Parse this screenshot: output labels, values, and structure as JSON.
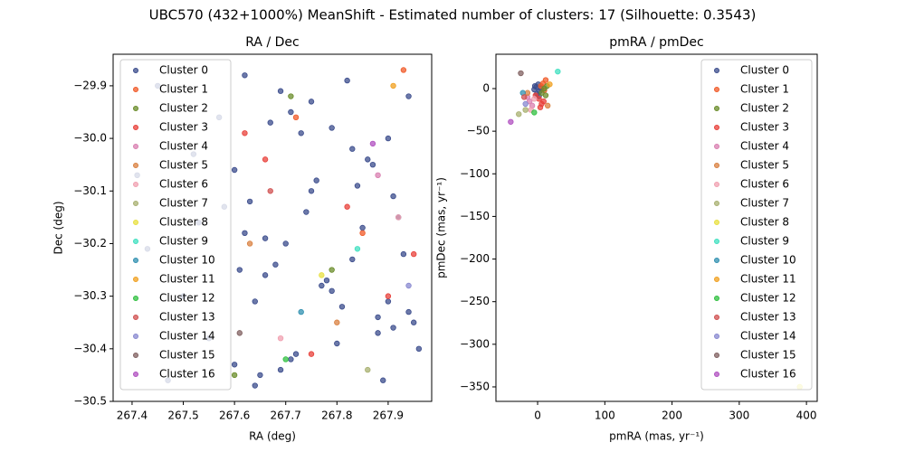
{
  "figure_title": "UBC570 (432+1000%) MeanShift - Estimated number of clusters: 17 (Silhouette: 0.3543)",
  "chart_data": [
    {
      "type": "scatter",
      "title": "RA / Dec",
      "xlabel": "RA (deg)",
      "ylabel": "Dec (deg)",
      "legend": "upper left",
      "xlim": [
        267.363,
        267.985
      ],
      "ylim": [
        -30.5,
        -29.84
      ],
      "xticks": [
        267.4,
        267.5,
        267.6,
        267.7,
        267.8,
        267.9
      ],
      "yticks": [
        {
          "value": -29.9,
          "label": "−29.9"
        },
        {
          "value": -30.0,
          "label": "−30.0"
        },
        {
          "value": -30.1,
          "label": "−30.1"
        },
        {
          "value": -30.2,
          "label": "−30.2"
        },
        {
          "value": -30.3,
          "label": "−30.3"
        },
        {
          "value": -30.4,
          "label": "−30.4"
        },
        {
          "value": -30.5,
          "label": "−30.5"
        }
      ],
      "series": [
        {
          "name": "Cluster 0",
          "color": "#3b4c8c",
          "x": [
            267.62,
            267.71,
            267.83,
            267.91,
            267.66,
            267.78,
            267.95,
            267.6,
            267.69,
            267.87,
            267.74,
            267.93,
            267.64,
            267.8,
            267.89,
            267.67,
            267.76,
            267.85,
            267.61,
            267.94,
            267.72,
            267.82,
            267.9,
            267.63,
            267.7,
            267.79,
            267.88,
            267.65,
            267.75,
            267.86,
            267.92,
            267.68,
            267.81,
            267.96,
            267.73,
            267.84,
            267.62,
            267.77,
            267.91,
            267.69,
            267.45,
            267.52,
            267.58,
            267.43,
            267.5,
            267.55,
            267.47,
            267.57,
            267.41,
            267.53,
            267.66,
            267.88,
            267.71,
            267.94,
            267.6,
            267.83,
            267.75,
            267.9,
            267.64,
            267.79
          ],
          "y": [
            -29.88,
            -29.95,
            -30.02,
            -30.11,
            -30.19,
            -30.27,
            -30.35,
            -30.43,
            -29.91,
            -30.05,
            -30.14,
            -30.22,
            -30.31,
            -30.39,
            -30.46,
            -29.97,
            -30.08,
            -30.17,
            -30.25,
            -30.33,
            -30.41,
            -29.89,
            -30.0,
            -30.12,
            -30.2,
            -30.29,
            -30.37,
            -30.45,
            -29.93,
            -30.04,
            -30.15,
            -30.24,
            -30.32,
            -30.4,
            -29.99,
            -30.09,
            -30.18,
            -30.28,
            -30.36,
            -30.44,
            -29.9,
            -30.03,
            -30.13,
            -30.21,
            -30.3,
            -30.38,
            -30.46,
            -29.96,
            -30.07,
            -30.16,
            -30.26,
            -30.34,
            -30.42,
            -29.92,
            -30.06,
            -30.23,
            -30.1,
            -30.31,
            -30.47,
            -29.98
          ]
        },
        {
          "name": "Cluster 1",
          "color": "#f05a28",
          "x": [
            267.72,
            267.85,
            267.93
          ],
          "y": [
            -29.96,
            -30.18,
            -29.87
          ]
        },
        {
          "name": "Cluster 2",
          "color": "#6a8c2a",
          "x": [
            267.71,
            267.79,
            267.6
          ],
          "y": [
            -29.92,
            -30.25,
            -30.45
          ]
        },
        {
          "name": "Cluster 3",
          "color": "#e8403a",
          "x": [
            267.66,
            267.82,
            267.9,
            267.75,
            267.95,
            267.62
          ],
          "y": [
            -30.04,
            -30.13,
            -30.3,
            -30.41,
            -30.22,
            -29.99
          ]
        },
        {
          "name": "Cluster 4",
          "color": "#d97fb0",
          "x": [
            267.88
          ],
          "y": [
            -30.07
          ]
        },
        {
          "name": "Cluster 5",
          "color": "#d98040",
          "x": [
            267.8,
            267.63
          ],
          "y": [
            -30.35,
            -30.2
          ]
        },
        {
          "name": "Cluster 6",
          "color": "#f0a0b0",
          "x": [
            267.92,
            267.69
          ],
          "y": [
            -30.15,
            -30.38
          ]
        },
        {
          "name": "Cluster 7",
          "color": "#a8b070",
          "x": [
            267.86
          ],
          "y": [
            -30.44
          ]
        },
        {
          "name": "Cluster 8",
          "color": "#e8e040",
          "x": [
            267.77
          ],
          "y": [
            -30.26
          ]
        },
        {
          "name": "Cluster 9",
          "color": "#40e0c0",
          "x": [
            267.84
          ],
          "y": [
            -30.21
          ]
        },
        {
          "name": "Cluster 10",
          "color": "#3090b0",
          "x": [
            267.73
          ],
          "y": [
            -30.33
          ]
        },
        {
          "name": "Cluster 11",
          "color": "#f0a020",
          "x": [
            267.91
          ],
          "y": [
            -29.9
          ]
        },
        {
          "name": "Cluster 12",
          "color": "#30c040",
          "x": [
            267.7
          ],
          "y": [
            -30.42
          ]
        },
        {
          "name": "Cluster 13",
          "color": "#d05050",
          "x": [
            267.67
          ],
          "y": [
            -30.1
          ]
        },
        {
          "name": "Cluster 14",
          "color": "#8888d0",
          "x": [
            267.94
          ],
          "y": [
            -30.28
          ]
        },
        {
          "name": "Cluster 15",
          "color": "#806060",
          "x": [
            267.61
          ],
          "y": [
            -30.37
          ]
        },
        {
          "name": "Cluster 16",
          "color": "#b050c0",
          "x": [
            267.87
          ],
          "y": [
            -30.01
          ]
        }
      ]
    },
    {
      "type": "scatter",
      "title": "pmRA / pmDec",
      "xlabel": "pmRA (mas, yr⁻¹)",
      "ylabel": "pmDec (mas, yr⁻¹)",
      "legend": "upper right",
      "xlim": [
        -62,
        416
      ],
      "ylim": [
        -367,
        40.3
      ],
      "xticks": [
        0,
        100,
        200,
        300,
        400
      ],
      "yticks": [
        0,
        {
          "value": -50,
          "label": "−50"
        },
        {
          "value": -100,
          "label": "−100"
        },
        {
          "value": -150,
          "label": "−150"
        },
        {
          "value": -200,
          "label": "−200"
        },
        {
          "value": -250,
          "label": "−250"
        },
        {
          "value": -300,
          "label": "−300"
        },
        {
          "value": -350,
          "label": "−350"
        }
      ],
      "series": [
        {
          "name": "Cluster 0",
          "color": "#3b4c8c",
          "x": [
            -2,
            3,
            -5,
            1,
            5,
            -1,
            2,
            -4
          ],
          "y": [
            2,
            -3,
            -1,
            5,
            0,
            -6,
            -9,
            3
          ]
        },
        {
          "name": "Cluster 1",
          "color": "#f05a28",
          "x": [
            8,
            12,
            5,
            10
          ],
          "y": [
            6,
            10,
            3,
            -2
          ]
        },
        {
          "name": "Cluster 2",
          "color": "#6a8c2a",
          "x": [
            10,
            14,
            6,
            12
          ],
          "y": [
            0,
            3,
            -5,
            -8
          ]
        },
        {
          "name": "Cluster 3",
          "color": "#e8403a",
          "x": [
            2,
            6,
            -3,
            9,
            4
          ],
          "y": [
            -12,
            -18,
            -8,
            -15,
            -22
          ]
        },
        {
          "name": "Cluster 4",
          "color": "#d97fb0",
          "x": [
            -12,
            -8,
            -15
          ],
          "y": [
            -15,
            -20,
            -10
          ]
        },
        {
          "name": "Cluster 5",
          "color": "#d98040",
          "x": [
            -15,
            15
          ],
          "y": [
            -5,
            -20
          ]
        },
        {
          "name": "Cluster 6",
          "color": "#f0a0b0",
          "x": [
            -10,
            -5
          ],
          "y": [
            -25,
            -12
          ]
        },
        {
          "name": "Cluster 7",
          "color": "#a8b070",
          "x": [
            -28,
            -18
          ],
          "y": [
            -30,
            -25
          ]
        },
        {
          "name": "Cluster 8",
          "color": "#e8e040",
          "x": [
            390
          ],
          "y": [
            -350
          ]
        },
        {
          "name": "Cluster 9",
          "color": "#40e0c0",
          "x": [
            30
          ],
          "y": [
            20
          ]
        },
        {
          "name": "Cluster 10",
          "color": "#3090b0",
          "x": [
            -22
          ],
          "y": [
            -5
          ]
        },
        {
          "name": "Cluster 11",
          "color": "#f0a020",
          "x": [
            18
          ],
          "y": [
            5
          ]
        },
        {
          "name": "Cluster 12",
          "color": "#30c040",
          "x": [
            -5
          ],
          "y": [
            -28
          ]
        },
        {
          "name": "Cluster 13",
          "color": "#d05050",
          "x": [
            -20
          ],
          "y": [
            -10
          ]
        },
        {
          "name": "Cluster 14",
          "color": "#8888d0",
          "x": [
            -18
          ],
          "y": [
            -18
          ]
        },
        {
          "name": "Cluster 15",
          "color": "#806060",
          "x": [
            -25
          ],
          "y": [
            18
          ]
        },
        {
          "name": "Cluster 16",
          "color": "#b050c0",
          "x": [
            -40
          ],
          "y": [
            -39
          ]
        }
      ]
    }
  ]
}
